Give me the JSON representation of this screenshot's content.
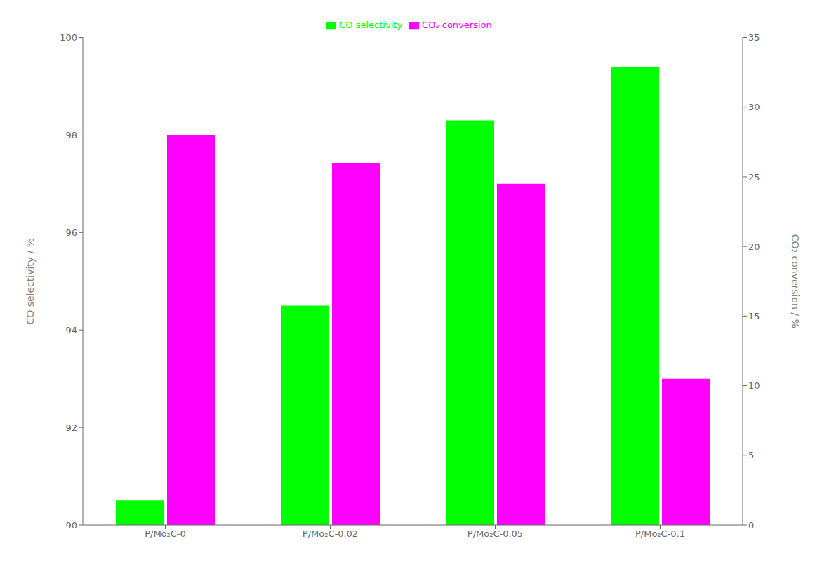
{
  "chart_data": {
    "type": "bar",
    "categories": [
      "P/Mo₂C-0",
      "P/Mo₂C-0.02",
      "P/Mo₂C-0.05",
      "P/Mo₂C-0.1"
    ],
    "series": [
      {
        "name": "CO selectivity",
        "color": "#00ff00",
        "values": [
          90.5,
          94.5,
          98.3,
          99.4
        ]
      },
      {
        "name": "CO₂ conversion",
        "color": "#ff00ff",
        "values": [
          28.0,
          26.0,
          24.5,
          10.5
        ],
        "axis": "y2"
      }
    ],
    "y_label": "CO selectivity / %",
    "y2_label": "CO₂ conversion / %",
    "ylim": [
      90,
      100
    ],
    "yticks": [
      90,
      92,
      94,
      96,
      98,
      100
    ],
    "y2lim": [
      0,
      35
    ],
    "y2ticks": [
      0,
      5,
      10,
      15,
      20,
      25,
      30,
      35
    ],
    "legend": "top",
    "grid": false
  }
}
